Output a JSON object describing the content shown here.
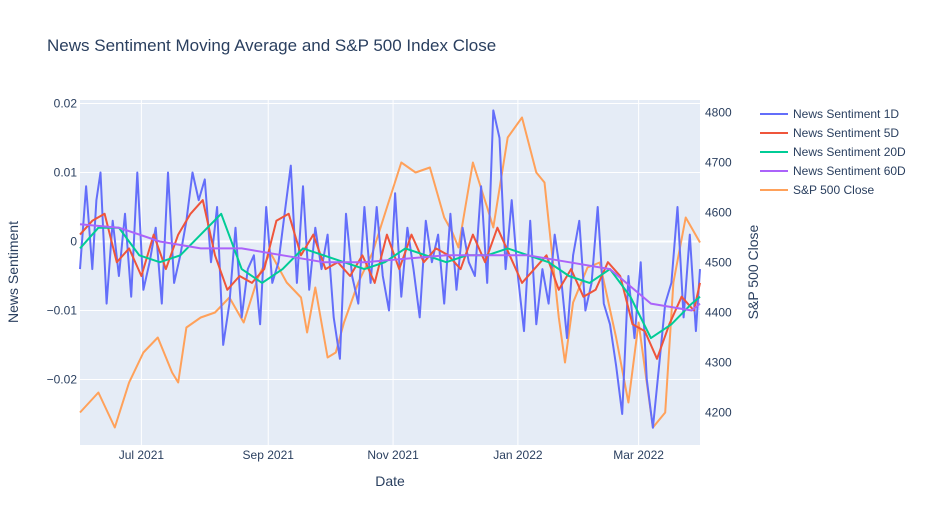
{
  "chart_data": {
    "type": "line",
    "title": "News Sentiment Moving Average and S&P 500 Index Close",
    "xlabel": "Date",
    "ylabel": "News Sentiment",
    "y2label": "S&P 500 Close",
    "xlim": [
      "2021-06-01",
      "2022-03-31"
    ],
    "ylim": [
      -0.0295,
      0.0205
    ],
    "y2lim": [
      4135,
      4825
    ],
    "x_ticks": [
      {
        "date": "2021-07-01",
        "label": "Jul 2021"
      },
      {
        "date": "2021-09-01",
        "label": "Sep 2021"
      },
      {
        "date": "2021-11-01",
        "label": "Nov 2021"
      },
      {
        "date": "2022-01-01",
        "label": "Jan 2022"
      },
      {
        "date": "2022-03-01",
        "label": "Mar 2022"
      }
    ],
    "y_ticks": [
      {
        "value": 0.02,
        "label": "0.02"
      },
      {
        "value": 0.01,
        "label": "0.01"
      },
      {
        "value": 0,
        "label": "0"
      },
      {
        "value": -0.01,
        "label": "−0.01"
      },
      {
        "value": -0.02,
        "label": "−0.02"
      }
    ],
    "y2_ticks": [
      {
        "value": 4800,
        "label": "4800"
      },
      {
        "value": 4700,
        "label": "4700"
      },
      {
        "value": 4600,
        "label": "4600"
      },
      {
        "value": 4500,
        "label": "4500"
      },
      {
        "value": 4400,
        "label": "4400"
      },
      {
        "value": 4300,
        "label": "4300"
      },
      {
        "value": 4200,
        "label": "4200"
      }
    ],
    "legend_position": "right",
    "grid": true,
    "colors": {
      "plot_bg": "#e5ecf6",
      "grid": "#ffffff",
      "text": "#2a3f5f"
    },
    "series": [
      {
        "name": "News Sentiment 1D",
        "color": "#636efa",
        "axis": "y",
        "x": [
          "2021-06-01",
          "2021-06-04",
          "2021-06-07",
          "2021-06-09",
          "2021-06-11",
          "2021-06-14",
          "2021-06-17",
          "2021-06-20",
          "2021-06-23",
          "2021-06-26",
          "2021-06-29",
          "2021-07-02",
          "2021-07-05",
          "2021-07-08",
          "2021-07-11",
          "2021-07-14",
          "2021-07-17",
          "2021-07-20",
          "2021-07-23",
          "2021-07-26",
          "2021-07-29",
          "2021-08-01",
          "2021-08-04",
          "2021-08-07",
          "2021-08-10",
          "2021-08-13",
          "2021-08-16",
          "2021-08-19",
          "2021-08-22",
          "2021-08-25",
          "2021-08-28",
          "2021-08-31",
          "2021-09-03",
          "2021-09-06",
          "2021-09-09",
          "2021-09-12",
          "2021-09-15",
          "2021-09-18",
          "2021-09-21",
          "2021-09-24",
          "2021-09-27",
          "2021-09-30",
          "2021-10-03",
          "2021-10-06",
          "2021-10-09",
          "2021-10-12",
          "2021-10-15",
          "2021-10-18",
          "2021-10-21",
          "2021-10-24",
          "2021-10-27",
          "2021-10-30",
          "2021-11-02",
          "2021-11-05",
          "2021-11-08",
          "2021-11-11",
          "2021-11-14",
          "2021-11-17",
          "2021-11-20",
          "2021-11-23",
          "2021-11-26",
          "2021-11-29",
          "2021-12-02",
          "2021-12-05",
          "2021-12-08",
          "2021-12-11",
          "2021-12-14",
          "2021-12-17",
          "2021-12-20",
          "2021-12-23",
          "2021-12-26",
          "2021-12-29",
          "2022-01-01",
          "2022-01-04",
          "2022-01-07",
          "2022-01-10",
          "2022-01-13",
          "2022-01-16",
          "2022-01-19",
          "2022-01-22",
          "2022-01-25",
          "2022-01-28",
          "2022-01-31",
          "2022-02-03",
          "2022-02-06",
          "2022-02-09",
          "2022-02-12",
          "2022-02-15",
          "2022-02-18",
          "2022-02-21",
          "2022-02-24",
          "2022-02-27",
          "2022-03-02",
          "2022-03-05",
          "2022-03-08",
          "2022-03-11",
          "2022-03-14",
          "2022-03-17",
          "2022-03-20",
          "2022-03-23",
          "2022-03-26",
          "2022-03-29",
          "2022-03-31"
        ],
        "y": [
          -0.004,
          0.008,
          -0.004,
          0.006,
          0.01,
          -0.009,
          0.003,
          -0.005,
          0.004,
          -0.008,
          0.01,
          -0.007,
          -0.003,
          0.002,
          -0.009,
          0.01,
          -0.006,
          -0.002,
          0.003,
          0.01,
          0.006,
          0.009,
          -0.003,
          0.005,
          -0.015,
          -0.009,
          0.002,
          -0.011,
          -0.004,
          -0.002,
          -0.012,
          0.005,
          -0.006,
          -0.003,
          0.004,
          0.011,
          -0.006,
          0.008,
          -0.007,
          0.002,
          -0.004,
          0.001,
          -0.011,
          -0.017,
          0.004,
          -0.005,
          -0.009,
          0.005,
          -0.006,
          0.005,
          -0.005,
          -0.01,
          0.007,
          -0.008,
          0.002,
          -0.004,
          -0.011,
          0.003,
          -0.003,
          0.001,
          -0.009,
          0.004,
          -0.007,
          0.002,
          -0.003,
          -0.005,
          0.008,
          -0.006,
          0.019,
          0.015,
          -0.004,
          0.006,
          -0.005,
          -0.013,
          0.003,
          -0.012,
          -0.004,
          -0.009,
          0.001,
          -0.005,
          -0.014,
          -0.002,
          0.003,
          -0.01,
          -0.006,
          0.005,
          -0.009,
          -0.012,
          -0.018,
          -0.025,
          -0.005,
          -0.014,
          -0.003,
          -0.02,
          -0.027,
          -0.018,
          -0.009,
          -0.006,
          0.005,
          -0.011,
          0.001,
          -0.013,
          -0.004
        ]
      },
      {
        "name": "News Sentiment 5D",
        "color": "#ef553b",
        "axis": "y",
        "x": [
          "2021-06-01",
          "2021-06-07",
          "2021-06-13",
          "2021-06-19",
          "2021-06-25",
          "2021-07-01",
          "2021-07-07",
          "2021-07-13",
          "2021-07-19",
          "2021-07-25",
          "2021-07-31",
          "2021-08-06",
          "2021-08-12",
          "2021-08-18",
          "2021-08-24",
          "2021-08-30",
          "2021-09-05",
          "2021-09-11",
          "2021-09-17",
          "2021-09-23",
          "2021-09-29",
          "2021-10-05",
          "2021-10-11",
          "2021-10-17",
          "2021-10-23",
          "2021-10-29",
          "2021-11-04",
          "2021-11-10",
          "2021-11-16",
          "2021-11-22",
          "2021-11-28",
          "2021-12-04",
          "2021-12-10",
          "2021-12-16",
          "2021-12-22",
          "2021-12-28",
          "2022-01-03",
          "2022-01-09",
          "2022-01-15",
          "2022-01-21",
          "2022-01-27",
          "2022-02-02",
          "2022-02-08",
          "2022-02-14",
          "2022-02-20",
          "2022-02-26",
          "2022-03-04",
          "2022-03-10",
          "2022-03-16",
          "2022-03-22",
          "2022-03-28",
          "2022-03-31"
        ],
        "y": [
          0.001,
          0.003,
          0.004,
          -0.003,
          -0.001,
          -0.005,
          0.001,
          -0.004,
          0.001,
          0.004,
          0.006,
          -0.002,
          -0.007,
          -0.005,
          -0.006,
          -0.004,
          0.003,
          0.004,
          -0.002,
          0.001,
          -0.004,
          -0.003,
          -0.005,
          -0.002,
          -0.006,
          0.001,
          -0.004,
          0.001,
          -0.003,
          -0.001,
          -0.002,
          -0.004,
          0.001,
          -0.003,
          0.002,
          -0.002,
          -0.006,
          -0.004,
          -0.002,
          -0.007,
          -0.004,
          -0.008,
          -0.007,
          -0.003,
          -0.005,
          -0.012,
          -0.013,
          -0.017,
          -0.012,
          -0.008,
          -0.01,
          -0.006
        ]
      },
      {
        "name": "News Sentiment 20D",
        "color": "#00cc96",
        "axis": "y",
        "x": [
          "2021-06-01",
          "2021-06-10",
          "2021-06-20",
          "2021-06-30",
          "2021-07-10",
          "2021-07-20",
          "2021-07-30",
          "2021-08-09",
          "2021-08-19",
          "2021-08-29",
          "2021-09-08",
          "2021-09-18",
          "2021-09-28",
          "2021-10-08",
          "2021-10-18",
          "2021-10-28",
          "2021-11-07",
          "2021-11-17",
          "2021-11-27",
          "2021-12-07",
          "2021-12-17",
          "2021-12-27",
          "2022-01-06",
          "2022-01-16",
          "2022-01-26",
          "2022-02-05",
          "2022-02-15",
          "2022-02-25",
          "2022-03-07",
          "2022-03-17",
          "2022-03-27",
          "2022-03-31"
        ],
        "y": [
          -0.001,
          0.002,
          0.002,
          -0.002,
          -0.003,
          -0.002,
          0.001,
          0.004,
          -0.004,
          -0.006,
          -0.004,
          -0.001,
          -0.002,
          -0.003,
          -0.004,
          -0.003,
          -0.001,
          -0.002,
          -0.003,
          -0.002,
          -0.002,
          -0.001,
          -0.002,
          -0.003,
          -0.005,
          -0.006,
          -0.004,
          -0.008,
          -0.014,
          -0.012,
          -0.009,
          -0.008
        ]
      },
      {
        "name": "News Sentiment 60D",
        "color": "#ab63fa",
        "axis": "y",
        "x": [
          "2021-06-01",
          "2021-06-20",
          "2021-07-10",
          "2021-07-30",
          "2021-08-19",
          "2021-09-08",
          "2021-09-28",
          "2021-10-18",
          "2021-11-07",
          "2021-11-27",
          "2021-12-17",
          "2022-01-06",
          "2022-01-26",
          "2022-02-15",
          "2022-03-07",
          "2022-03-27",
          "2022-03-31"
        ],
        "y": [
          0.0025,
          0.002,
          0.0,
          -0.001,
          -0.001,
          -0.002,
          -0.003,
          -0.003,
          -0.0025,
          -0.002,
          -0.002,
          -0.002,
          -0.003,
          -0.004,
          -0.009,
          -0.01,
          -0.009
        ]
      },
      {
        "name": "S&P 500 Close",
        "color": "#ffa15a",
        "axis": "y2",
        "x": [
          "2021-06-01",
          "2021-06-10",
          "2021-06-18",
          "2021-06-25",
          "2021-07-02",
          "2021-07-09",
          "2021-07-16",
          "2021-07-19",
          "2021-07-23",
          "2021-07-30",
          "2021-08-06",
          "2021-08-13",
          "2021-08-20",
          "2021-08-27",
          "2021-09-02",
          "2021-09-10",
          "2021-09-17",
          "2021-09-20",
          "2021-09-24",
          "2021-09-30",
          "2021-10-04",
          "2021-10-08",
          "2021-10-15",
          "2021-10-22",
          "2021-10-29",
          "2021-11-05",
          "2021-11-12",
          "2021-11-19",
          "2021-11-26",
          "2021-11-30",
          "2021-12-03",
          "2021-12-10",
          "2021-12-17",
          "2021-12-20",
          "2021-12-27",
          "2022-01-03",
          "2022-01-10",
          "2022-01-14",
          "2022-01-21",
          "2022-01-24",
          "2022-01-28",
          "2022-02-04",
          "2022-02-10",
          "2022-02-18",
          "2022-02-24",
          "2022-03-01",
          "2022-03-08",
          "2022-03-14",
          "2022-03-18",
          "2022-03-24",
          "2022-03-31"
        ],
        "y": [
          4200,
          4240,
          4170,
          4260,
          4320,
          4350,
          4280,
          4260,
          4370,
          4390,
          4400,
          4430,
          4380,
          4470,
          4520,
          4460,
          4430,
          4360,
          4450,
          4310,
          4320,
          4380,
          4460,
          4520,
          4610,
          4700,
          4680,
          4690,
          4590,
          4560,
          4530,
          4700,
          4610,
          4570,
          4750,
          4790,
          4680,
          4660,
          4390,
          4300,
          4420,
          4490,
          4500,
          4350,
          4220,
          4380,
          4170,
          4200,
          4460,
          4590,
          4540
        ]
      }
    ]
  }
}
